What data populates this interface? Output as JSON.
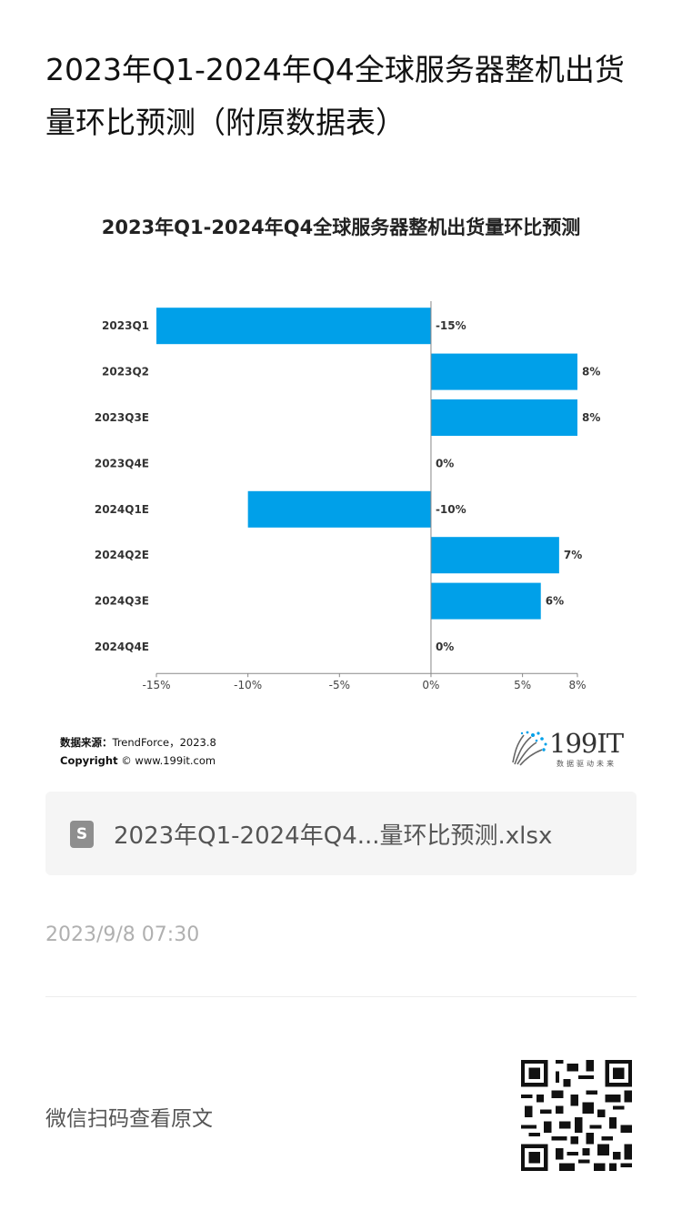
{
  "article": {
    "title": "2023年Q1-2024年Q4全球服务器整机出货量环比预测（附原数据表）"
  },
  "chart_data": {
    "type": "bar",
    "orientation": "horizontal",
    "title": "2023年Q1-2024年Q4全球服务器整机出货量环比预测",
    "categories": [
      "2023Q1",
      "2023Q2",
      "2023Q3E",
      "2023Q4E",
      "2024Q1E",
      "2024Q2E",
      "2024Q3E",
      "2024Q4E"
    ],
    "values": [
      -15,
      8,
      8,
      0,
      -10,
      7,
      6,
      0
    ],
    "value_labels": [
      "-15%",
      "8%",
      "8%",
      "0%",
      "-10%",
      "7%",
      "6%",
      "0%"
    ],
    "x_ticks": [
      {
        "value": -15,
        "label": "-15%"
      },
      {
        "value": -10,
        "label": "-10%"
      },
      {
        "value": -5,
        "label": "-5%"
      },
      {
        "value": 0,
        "label": "0%"
      },
      {
        "value": 5,
        "label": "5%"
      },
      {
        "value": 8,
        "label": "8%"
      }
    ],
    "xlim": [
      -15,
      8
    ],
    "xlabel": "",
    "ylabel": "",
    "grid": false,
    "bar_color": "#00a0e9",
    "axis_color": "#888888"
  },
  "source": {
    "label": "数据来源：",
    "text": "TrendForce，2023.8",
    "copyright_label": "Copyright",
    "copyright_text": "© www.199it.com"
  },
  "logo": {
    "text": "199IT",
    "tagline": "数据驱动未来"
  },
  "attachment": {
    "icon": "spreadsheet-file-icon",
    "icon_letter": "S",
    "name": "2023年Q1-2024年Q4...量环比预测.xlsx"
  },
  "publish_time": "2023/9/8 07:30",
  "qr": {
    "hint": "微信扫码查看原文",
    "icon": "qr-code-icon"
  }
}
